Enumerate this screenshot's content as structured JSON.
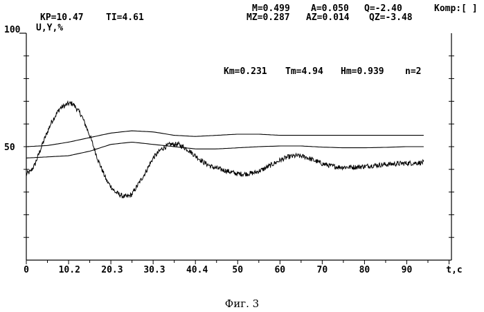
{
  "header": {
    "kp": "KP=10.47",
    "ti": "TI=4.61",
    "m": "M=0.499",
    "a": "A=0.050",
    "q": "Q=-2.40",
    "komp": "Komp:[ ]",
    "mz": "MZ=0.287",
    "az": "AZ=0.014",
    "qz": "QZ=-3.48",
    "y_top": "100",
    "y_label": "U,Y,%"
  },
  "model_params": {
    "km": "Km=0.231",
    "tm": "Tm=4.94",
    "hm": "Hm=0.939",
    "n": "n=2"
  },
  "caption": "Фиг. 3",
  "chart_data": {
    "type": "line",
    "title": "",
    "xlabel": "t,c",
    "ylabel": "U,Y,%",
    "xlim": [
      0,
      95
    ],
    "ylim": [
      0,
      100
    ],
    "grid": false,
    "x_tick_labels": [
      {
        "value": 0,
        "label": "0"
      },
      {
        "value": 10.2,
        "label": "10.2"
      },
      {
        "value": 20.3,
        "label": "20.3"
      },
      {
        "value": 30.3,
        "label": "30.3"
      },
      {
        "value": 40.4,
        "label": "40.4"
      },
      {
        "value": 50,
        "label": "50"
      },
      {
        "value": 60,
        "label": "60"
      },
      {
        "value": 70,
        "label": "70"
      },
      {
        "value": 80,
        "label": "80"
      },
      {
        "value": 90,
        "label": "90"
      }
    ],
    "y_tick_labels": [
      {
        "value": 50,
        "label": "50"
      }
    ],
    "series": [
      {
        "noisy": true,
        "x": [
          0,
          1,
          2,
          4,
          6,
          8,
          10,
          11,
          13,
          15,
          17,
          19,
          21,
          23,
          24,
          25,
          26,
          28,
          30,
          32,
          34,
          36,
          38,
          40,
          42,
          44,
          46,
          48,
          50,
          52,
          54,
          56,
          58,
          60,
          62,
          64,
          66,
          68,
          70,
          72,
          74,
          76,
          78,
          80,
          82,
          84,
          86,
          88,
          90,
          92,
          94
        ],
        "y": [
          38,
          39,
          42,
          52,
          61,
          67,
          69,
          69,
          64,
          55,
          44,
          35,
          30,
          28,
          28,
          29,
          32,
          38,
          45,
          49,
          51,
          51,
          49,
          46,
          43,
          41,
          40,
          39,
          38,
          38,
          38.5,
          40,
          42,
          44,
          45.5,
          46,
          45.5,
          44,
          42.5,
          41.5,
          41,
          41,
          41,
          41.3,
          41.7,
          42,
          42.3,
          42.5,
          42.7,
          42.8,
          43
        ]
      },
      {
        "noisy": false,
        "x": [
          0,
          5,
          10,
          15,
          20,
          25,
          30,
          35,
          40,
          45,
          50,
          55,
          60,
          65,
          70,
          75,
          80,
          85,
          90,
          94
        ],
        "y": [
          50,
          50.5,
          52,
          54,
          56,
          57,
          56.5,
          55,
          54.5,
          55,
          55.5,
          55.5,
          55,
          55,
          55,
          55,
          55,
          55,
          55,
          55
        ]
      },
      {
        "noisy": false,
        "x": [
          0,
          5,
          10,
          15,
          20,
          25,
          30,
          35,
          40,
          45,
          50,
          55,
          60,
          65,
          70,
          75,
          80,
          85,
          90,
          94
        ],
        "y": [
          45,
          45.5,
          46,
          48,
          51,
          52,
          51,
          50,
          49,
          49,
          49.5,
          50,
          50.3,
          50.3,
          49.8,
          49.5,
          49.5,
          49.7,
          50,
          50
        ]
      }
    ]
  }
}
